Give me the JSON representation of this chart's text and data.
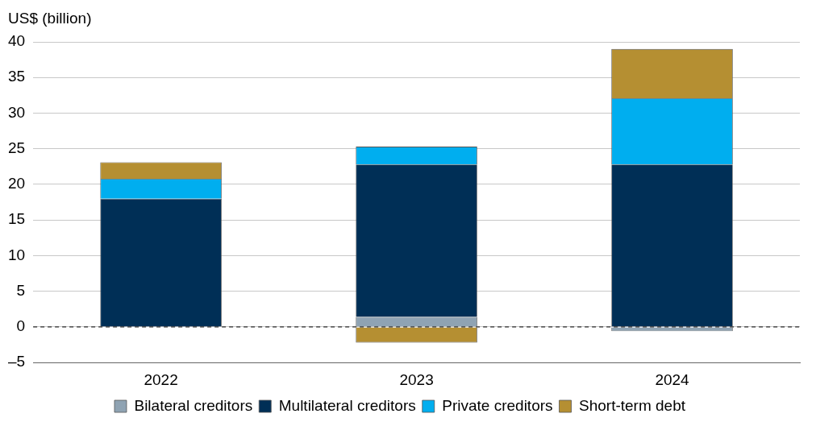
{
  "chart_data": {
    "type": "bar",
    "ylabel": "US$ (billion)",
    "categories": [
      "2022",
      "2023",
      "2024"
    ],
    "stacked": true,
    "series": [
      {
        "name": "Bilateral creditors",
        "color": "#8fa3b3",
        "values": [
          0,
          1.4,
          -0.6
        ]
      },
      {
        "name": "Multilateral creditors",
        "color": "#002f56",
        "values": [
          18.0,
          21.4,
          22.8
        ]
      },
      {
        "name": "Private creditors",
        "color": "#00aeef",
        "values": [
          2.8,
          2.5,
          9.3
        ]
      },
      {
        "name": "Short-term debt",
        "color": "#b58f32",
        "values": [
          2.3,
          -2.2,
          6.9
        ]
      }
    ],
    "ylim": [
      -5,
      40
    ],
    "yticks": [
      {
        "value": -5,
        "label": "–5"
      },
      0,
      5,
      10,
      15,
      20,
      25,
      30,
      35,
      40
    ],
    "grid": "y",
    "legend": "bottom",
    "ref_lines": [
      {
        "axis": "y",
        "value": 0,
        "line_style": "dashed",
        "color": "#000000"
      }
    ]
  }
}
